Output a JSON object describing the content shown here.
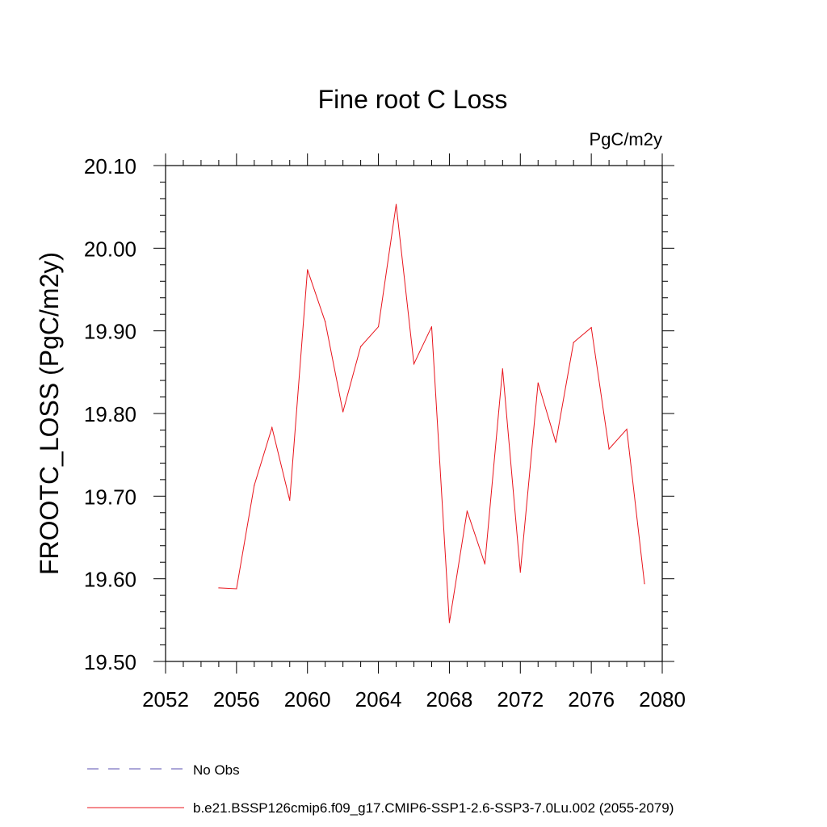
{
  "chart_data": {
    "type": "line",
    "title": "Fine root C Loss",
    "units_label": "PgC/m2y",
    "ylabel": "FROOTC_LOSS  (PgC/m2y)",
    "xlabel": "",
    "xlim": [
      2052,
      2080
    ],
    "ylim": [
      19.5,
      20.1
    ],
    "xticks": [
      2052,
      2056,
      2060,
      2064,
      2068,
      2072,
      2076,
      2080
    ],
    "xtick_labels": [
      "2052",
      "2056",
      "2060",
      "2064",
      "2068",
      "2072",
      "2076",
      "2080"
    ],
    "yticks": [
      19.5,
      19.6,
      19.7,
      19.8,
      19.9,
      20.0,
      20.1
    ],
    "ytick_labels": [
      "19.50",
      "19.60",
      "19.70",
      "19.80",
      "19.90",
      "20.00",
      "20.10"
    ],
    "grid": false,
    "legend_position": "bottom",
    "legend": [
      {
        "name": "No Obs",
        "color": "#5a4fb0",
        "style": "dashed"
      },
      {
        "name": "b.e21.BSSP126cmip6.f09_g17.CMIP6-SSP1-2.6-SSP3-7.0Lu.002 (2055-2079)",
        "color": "#e8141c",
        "style": "solid"
      }
    ],
    "series": [
      {
        "name": "b.e21.BSSP126cmip6.f09_g17.CMIP6-SSP1-2.6-SSP3-7.0Lu.002 (2055-2079)",
        "color": "#e8141c",
        "x": [
          2055,
          2056,
          2057,
          2058,
          2059,
          2060,
          2061,
          2062,
          2063,
          2064,
          2065,
          2066,
          2067,
          2068,
          2069,
          2070,
          2071,
          2072,
          2073,
          2074,
          2075,
          2076,
          2077,
          2078,
          2079
        ],
        "y": [
          19.589,
          19.588,
          19.713,
          19.783,
          19.695,
          19.974,
          19.911,
          19.802,
          19.881,
          19.905,
          20.053,
          19.86,
          19.905,
          19.547,
          19.682,
          19.618,
          19.854,
          19.608,
          19.837,
          19.765,
          19.886,
          19.904,
          19.757,
          19.781,
          19.594
        ]
      }
    ]
  }
}
